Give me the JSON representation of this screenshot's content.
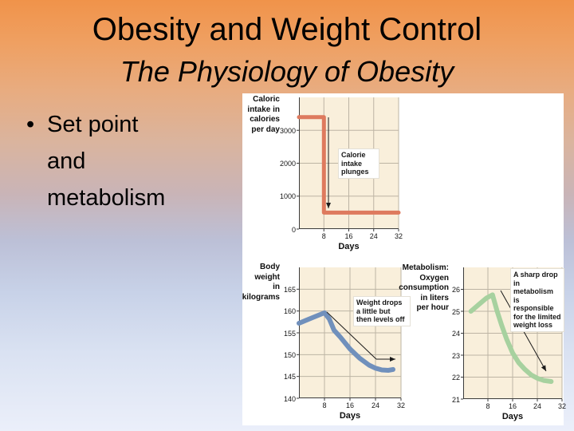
{
  "slide": {
    "title": "Obesity and Weight Control",
    "subtitle": "The Physiology of Obesity",
    "bullet_marker": "•",
    "bullet": "Set point and metabolism"
  },
  "colors": {
    "background_top": "#f0934a",
    "background_bottom": "#ebeffa",
    "panel_bg": "#ffffff",
    "plot_bg": "#f9efdb",
    "grid": "#bdb4a4",
    "axis": "#3b3b3b",
    "annotation_arrow": "#1a1a1a",
    "caloric_line": "#de7a5e",
    "weight_line": "#7090bc",
    "metabolism_line": "#a7d19f"
  },
  "chart_data": [
    {
      "id": "caloric-intake",
      "type": "line",
      "ylabel": "Caloric intake in calories per day",
      "ylabel_lines": [
        "Caloric",
        "intake in",
        "calories",
        "per day"
      ],
      "xlabel": "Days",
      "yticks": [
        0,
        1000,
        2000,
        3000
      ],
      "xticks": [
        8,
        16,
        24,
        32
      ],
      "xlim": [
        0,
        32
      ],
      "ylim": [
        0,
        4000
      ],
      "grid": true,
      "series": [
        {
          "name": "caloric-intake",
          "color_key": "caloric_line",
          "points": [
            [
              0,
              3400
            ],
            [
              8,
              3400
            ],
            [
              8,
              500
            ],
            [
              32,
              500
            ]
          ]
        }
      ],
      "annotation": {
        "text": "Calorie intake plunges",
        "lines": [
          "Calorie",
          "intake",
          "plunges"
        ]
      }
    },
    {
      "id": "body-weight",
      "type": "line",
      "ylabel": "Body weight in kilograms",
      "ylabel_lines": [
        "Body",
        "weight",
        "in",
        "kilograms"
      ],
      "xlabel": "Days",
      "yticks": [
        140,
        145,
        150,
        155,
        160,
        165
      ],
      "xticks": [
        8,
        16,
        24,
        32
      ],
      "xlim": [
        0,
        32
      ],
      "ylim": [
        140,
        170
      ],
      "grid": true,
      "series": [
        {
          "name": "body-weight",
          "color_key": "weight_line",
          "points": [
            [
              0,
              157.2
            ],
            [
              4,
              158.4
            ],
            [
              8,
              159.6
            ],
            [
              9.5,
              158.2
            ],
            [
              11,
              155.6
            ],
            [
              13,
              154.0
            ],
            [
              16,
              151.3
            ],
            [
              19,
              149.2
            ],
            [
              22,
              147.6
            ],
            [
              24,
              146.9
            ],
            [
              26,
              146.5
            ],
            [
              28,
              146.4
            ],
            [
              29.5,
              146.6
            ]
          ]
        }
      ],
      "annotation": {
        "text": "Weight drops a little but then levels off",
        "lines": [
          "Weight drops",
          "a little but",
          "then levels off"
        ]
      }
    },
    {
      "id": "metabolism",
      "type": "line",
      "ylabel": "Metabolism: Oxygen consumption in liters per hour",
      "ylabel_lines": [
        "Metabolism:",
        "Oxygen",
        "consumption",
        "in liters",
        "per hour"
      ],
      "xlabel": "Days",
      "yticks": [
        21,
        22,
        23,
        24,
        25,
        26
      ],
      "xticks": [
        8,
        16,
        24,
        32
      ],
      "xlim": [
        0,
        32
      ],
      "ylim": [
        21,
        27
      ],
      "grid": true,
      "series": [
        {
          "name": "oxygen-consumption",
          "color_key": "metabolism_line",
          "points": [
            [
              2.5,
              25.0
            ],
            [
              5,
              25.3
            ],
            [
              7.5,
              25.6
            ],
            [
              9.5,
              25.75
            ],
            [
              11,
              25.0
            ],
            [
              12.5,
              24.35
            ],
            [
              14,
              23.75
            ],
            [
              16,
              23.1
            ],
            [
              18,
              22.65
            ],
            [
              20,
              22.35
            ],
            [
              22,
              22.1
            ],
            [
              24,
              21.95
            ],
            [
              26,
              21.85
            ],
            [
              28.5,
              21.8
            ]
          ]
        }
      ],
      "annotation": {
        "text": "A sharp drop in metabolism is responsible for the limited weight loss",
        "lines": [
          "A sharp drop",
          "in metabolism",
          "is responsible",
          "for the limited",
          "weight loss"
        ]
      }
    }
  ]
}
